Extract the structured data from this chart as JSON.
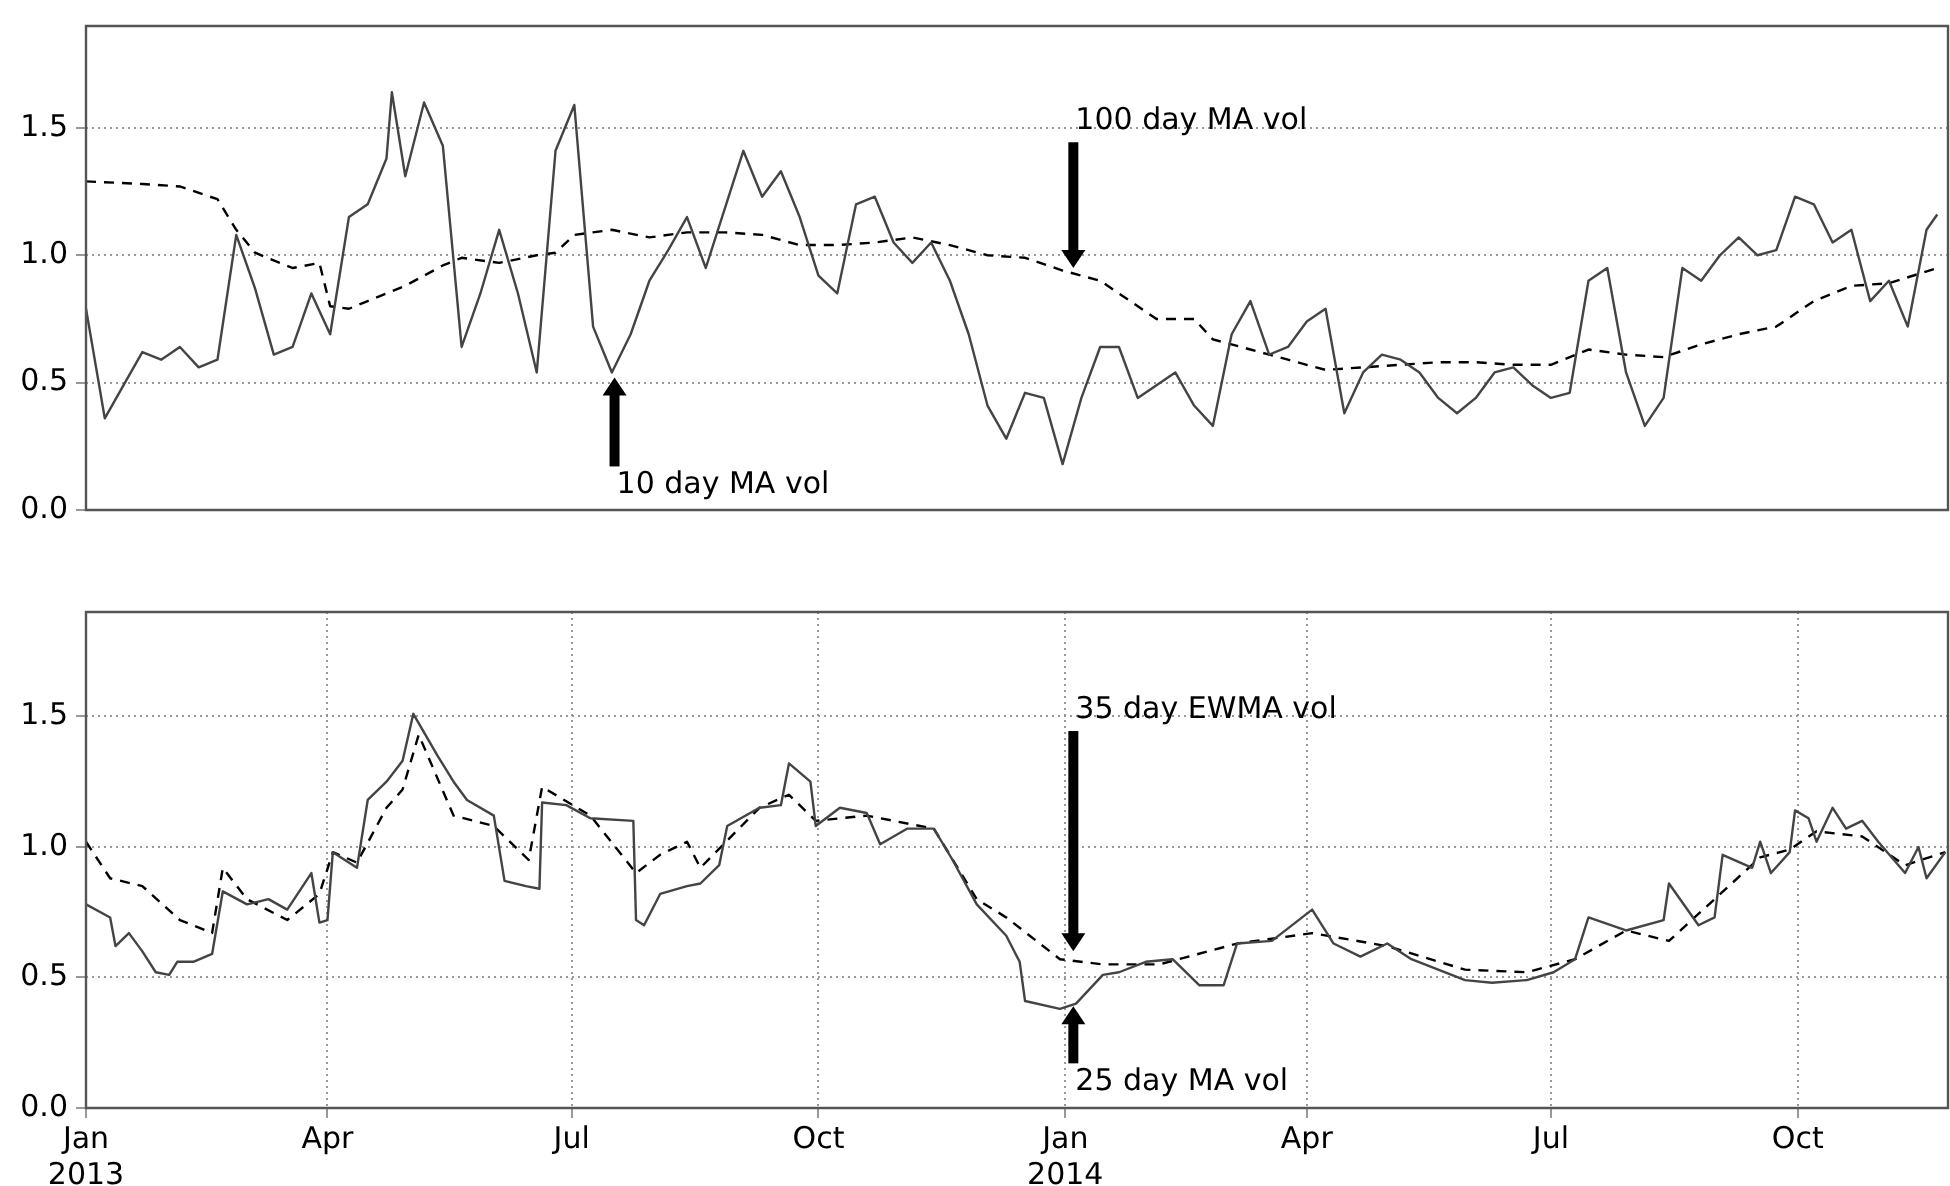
{
  "chart_data": [
    {
      "type": "line",
      "xlim": [
        "2013-01-01",
        "2014-11-26"
      ],
      "ylim": [
        0,
        1.9
      ],
      "yticks": [
        {
          "value": 0,
          "label": "0.0"
        },
        {
          "value": 0.5,
          "label": "0.5"
        },
        {
          "value": 1,
          "label": "1.0"
        },
        {
          "value": 1.5,
          "label": "1.5"
        }
      ],
      "grid": "y",
      "tick_labels": "y",
      "annotations": [
        {
          "text": "10 day MA vol",
          "x": "2013-07-17",
          "y": 0.52
        },
        {
          "text": "100 day MA vol",
          "x": "2014-01-04",
          "y": 0.95
        }
      ],
      "series": [
        {
          "color": "#444444",
          "line_style": "solid",
          "x": [
            "2013-01-01",
            "2013-01-08",
            "2013-01-15",
            "2013-01-22",
            "2013-01-29",
            "2013-02-05",
            "2013-02-12",
            "2013-02-19",
            "2013-02-26",
            "2013-03-05",
            "2013-03-12",
            "2013-03-19",
            "2013-03-26",
            "2013-04-02",
            "2013-04-09",
            "2013-04-16",
            "2013-04-23",
            "2013-04-25",
            "2013-04-30",
            "2013-05-07",
            "2013-05-14",
            "2013-05-21",
            "2013-05-28",
            "2013-06-04",
            "2013-06-11",
            "2013-06-18",
            "2013-06-25",
            "2013-07-02",
            "2013-07-09",
            "2013-07-16",
            "2013-07-23",
            "2013-07-30",
            "2013-08-06",
            "2013-08-13",
            "2013-08-20",
            "2013-08-27",
            "2013-09-03",
            "2013-09-10",
            "2013-09-17",
            "2013-09-24",
            "2013-10-01",
            "2013-10-08",
            "2013-10-15",
            "2013-10-22",
            "2013-10-29",
            "2013-11-05",
            "2013-11-12",
            "2013-11-19",
            "2013-11-26",
            "2013-12-03",
            "2013-12-10",
            "2013-12-17",
            "2013-12-24",
            "2013-12-31",
            "2014-01-07",
            "2014-01-14",
            "2014-01-21",
            "2014-01-28",
            "2014-02-04",
            "2014-02-11",
            "2014-02-18",
            "2014-02-25",
            "2014-03-04",
            "2014-03-11",
            "2014-03-18",
            "2014-03-25",
            "2014-04-01",
            "2014-04-08",
            "2014-04-15",
            "2014-04-22",
            "2014-04-29",
            "2014-05-06",
            "2014-05-13",
            "2014-05-20",
            "2014-05-27",
            "2014-06-03",
            "2014-06-10",
            "2014-06-17",
            "2014-06-24",
            "2014-07-01",
            "2014-07-08",
            "2014-07-15",
            "2014-07-22",
            "2014-07-29",
            "2014-08-05",
            "2014-08-12",
            "2014-08-19",
            "2014-08-26",
            "2014-09-02",
            "2014-09-09",
            "2014-09-16",
            "2014-09-23",
            "2014-09-30",
            "2014-10-07",
            "2014-10-14",
            "2014-10-21",
            "2014-10-28",
            "2014-11-04",
            "2014-11-11",
            "2014-11-18",
            "2014-11-22"
          ],
          "values": [
            0.79,
            0.36,
            0.49,
            0.62,
            0.59,
            0.64,
            0.56,
            0.59,
            1.08,
            0.87,
            0.61,
            0.64,
            0.85,
            0.69,
            1.15,
            1.2,
            1.38,
            1.64,
            1.31,
            1.6,
            1.43,
            0.64,
            0.85,
            1.1,
            0.85,
            0.54,
            1.41,
            1.59,
            0.72,
            0.54,
            0.69,
            0.9,
            1.02,
            1.15,
            0.95,
            1.18,
            1.41,
            1.23,
            1.33,
            1.15,
            0.92,
            0.85,
            1.2,
            1.23,
            1.05,
            0.97,
            1.05,
            0.9,
            0.69,
            0.41,
            0.28,
            0.46,
            0.44,
            0.18,
            0.44,
            0.64,
            0.64,
            0.44,
            0.49,
            0.54,
            0.41,
            0.33,
            0.69,
            0.82,
            0.61,
            0.64,
            0.74,
            0.79,
            0.38,
            0.54,
            0.61,
            0.59,
            0.54,
            0.44,
            0.38,
            0.44,
            0.54,
            0.56,
            0.49,
            0.44,
            0.46,
            0.9,
            0.95,
            0.54,
            0.33,
            0.44,
            0.95,
            0.9,
            1.0,
            1.07,
            1.0,
            1.02,
            1.23,
            1.2,
            1.05,
            1.1,
            0.82,
            0.9,
            0.72,
            1.1,
            1.16
          ]
        },
        {
          "color": "#000000",
          "line_style": "dashed",
          "x": [
            "2013-01-01",
            "2013-01-22",
            "2013-02-05",
            "2013-02-19",
            "2013-02-26",
            "2013-03-05",
            "2013-03-19",
            "2013-03-29",
            "2013-04-02",
            "2013-04-09",
            "2013-04-16",
            "2013-04-30",
            "2013-05-14",
            "2013-05-21",
            "2013-06-04",
            "2013-06-18",
            "2013-06-25",
            "2013-07-02",
            "2013-07-16",
            "2013-07-30",
            "2013-08-13",
            "2013-08-27",
            "2013-09-10",
            "2013-09-24",
            "2013-10-08",
            "2013-10-22",
            "2013-11-05",
            "2013-11-19",
            "2013-12-03",
            "2013-12-17",
            "2013-12-31",
            "2014-01-14",
            "2014-01-21",
            "2014-02-04",
            "2014-02-18",
            "2014-02-25",
            "2014-03-11",
            "2014-03-25",
            "2014-04-08",
            "2014-04-22",
            "2014-05-06",
            "2014-05-20",
            "2014-06-03",
            "2014-06-17",
            "2014-07-01",
            "2014-07-15",
            "2014-07-29",
            "2014-08-12",
            "2014-08-26",
            "2014-09-09",
            "2014-09-23",
            "2014-10-07",
            "2014-10-21",
            "2014-11-04",
            "2014-11-22"
          ],
          "values": [
            1.29,
            1.28,
            1.27,
            1.22,
            1.1,
            1.01,
            0.95,
            0.97,
            0.8,
            0.79,
            0.82,
            0.88,
            0.96,
            0.99,
            0.97,
            1.0,
            1.01,
            1.08,
            1.1,
            1.07,
            1.09,
            1.09,
            1.08,
            1.04,
            1.04,
            1.05,
            1.07,
            1.04,
            1.0,
            0.99,
            0.94,
            0.9,
            0.85,
            0.75,
            0.75,
            0.67,
            0.63,
            0.59,
            0.55,
            0.56,
            0.57,
            0.58,
            0.58,
            0.57,
            0.57,
            0.63,
            0.61,
            0.6,
            0.65,
            0.69,
            0.72,
            0.82,
            0.88,
            0.89,
            0.95
          ]
        }
      ]
    },
    {
      "type": "line",
      "xlim": [
        "2013-01-01",
        "2014-11-26"
      ],
      "ylim": [
        0,
        1.9
      ],
      "yticks": [
        {
          "value": 0,
          "label": "0.0"
        },
        {
          "value": 0.5,
          "label": "0.5"
        },
        {
          "value": 1,
          "label": "1.0"
        },
        {
          "value": 1.5,
          "label": "1.5"
        }
      ],
      "xticks": [
        {
          "value": "2013-01-01",
          "label": "Jan\n2013"
        },
        {
          "value": "2013-04-01",
          "label": "Apr"
        },
        {
          "value": "2013-07-01",
          "label": "Jul"
        },
        {
          "value": "2013-10-01",
          "label": "Oct"
        },
        {
          "value": "2014-01-01",
          "label": "Jan\n2014"
        },
        {
          "value": "2014-04-01",
          "label": "Apr"
        },
        {
          "value": "2014-07-01",
          "label": "Jul"
        },
        {
          "value": "2014-10-01",
          "label": "Oct"
        }
      ],
      "grid": true,
      "annotations": [
        {
          "text": "35 day EWMA vol",
          "x": "2014-01-04",
          "y": 0.6
        },
        {
          "text": "25 day MA vol",
          "x": "2014-01-04",
          "y": 0.39
        }
      ],
      "series": [
        {
          "color": "#444444",
          "line_style": "solid",
          "x": [
            "2013-01-01",
            "2013-01-10",
            "2013-01-12",
            "2013-01-17",
            "2013-01-22",
            "2013-01-27",
            "2013-02-01",
            "2013-02-04",
            "2013-02-10",
            "2013-02-17",
            "2013-02-21",
            "2013-03-02",
            "2013-03-10",
            "2013-03-17",
            "2013-03-26",
            "2013-03-29",
            "2013-04-01",
            "2013-04-03",
            "2013-04-12",
            "2013-04-16",
            "2013-04-23",
            "2013-04-29",
            "2013-05-03",
            "2013-05-12",
            "2013-05-18",
            "2013-05-23",
            "2013-06-02",
            "2013-06-06",
            "2013-06-14",
            "2013-06-19",
            "2013-06-20",
            "2013-06-29",
            "2013-07-08",
            "2013-07-24",
            "2013-07-25",
            "2013-07-28",
            "2013-08-03",
            "2013-08-13",
            "2013-08-18",
            "2013-08-25",
            "2013-08-28",
            "2013-09-09",
            "2013-09-17",
            "2013-09-20",
            "2013-09-28",
            "2013-09-30",
            "2013-10-09",
            "2013-10-19",
            "2013-10-24",
            "2013-11-03",
            "2013-11-13",
            "2013-11-20",
            "2013-11-29",
            "2013-12-10",
            "2013-12-15",
            "2013-12-17",
            "2013-12-30",
            "2014-01-05",
            "2014-01-15",
            "2014-01-21",
            "2014-01-31",
            "2014-02-10",
            "2014-02-20",
            "2014-03-01",
            "2014-03-06",
            "2014-03-19",
            "2014-04-03",
            "2014-04-11",
            "2014-04-21",
            "2014-05-01",
            "2014-05-10",
            "2014-05-30",
            "2014-06-09",
            "2014-06-22",
            "2014-07-02",
            "2014-07-10",
            "2014-07-15",
            "2014-07-29",
            "2014-08-12",
            "2014-08-14",
            "2014-08-25",
            "2014-08-31",
            "2014-09-03",
            "2014-09-14",
            "2014-09-17",
            "2014-09-21",
            "2014-09-28",
            "2014-09-30",
            "2014-10-05",
            "2014-10-08",
            "2014-10-14",
            "2014-10-19",
            "2014-10-25",
            "2014-10-31",
            "2014-11-10",
            "2014-11-15",
            "2014-11-18",
            "2014-11-25"
          ],
          "values": [
            0.78,
            0.73,
            0.62,
            0.67,
            0.6,
            0.52,
            0.51,
            0.56,
            0.56,
            0.59,
            0.83,
            0.78,
            0.8,
            0.76,
            0.9,
            0.71,
            0.72,
            0.98,
            0.92,
            1.18,
            1.25,
            1.33,
            1.51,
            1.35,
            1.25,
            1.18,
            1.12,
            0.87,
            0.85,
            0.84,
            1.17,
            1.16,
            1.11,
            1.1,
            0.72,
            0.7,
            0.82,
            0.85,
            0.86,
            0.93,
            1.08,
            1.15,
            1.16,
            1.32,
            1.25,
            1.08,
            1.15,
            1.13,
            1.01,
            1.07,
            1.07,
            0.95,
            0.78,
            0.66,
            0.56,
            0.41,
            0.38,
            0.4,
            0.51,
            0.52,
            0.56,
            0.57,
            0.47,
            0.47,
            0.63,
            0.64,
            0.76,
            0.63,
            0.58,
            0.63,
            0.57,
            0.49,
            0.48,
            0.49,
            0.52,
            0.57,
            0.73,
            0.68,
            0.72,
            0.86,
            0.7,
            0.73,
            0.97,
            0.92,
            1.02,
            0.9,
            0.98,
            1.14,
            1.11,
            1.02,
            1.15,
            1.07,
            1.1,
            1.02,
            0.9,
            1.0,
            0.88,
            0.98
          ]
        },
        {
          "color": "#000000",
          "line_style": "dashed",
          "x": [
            "2013-01-01",
            "2013-01-10",
            "2013-01-22",
            "2013-02-05",
            "2013-02-17",
            "2013-02-21",
            "2013-03-02",
            "2013-03-17",
            "2013-03-29",
            "2013-04-03",
            "2013-04-12",
            "2013-04-23",
            "2013-04-29",
            "2013-05-05",
            "2013-05-18",
            "2013-06-02",
            "2013-06-15",
            "2013-06-20",
            "2013-07-08",
            "2013-07-25",
            "2013-08-03",
            "2013-08-13",
            "2013-08-18",
            "2013-09-09",
            "2013-09-20",
            "2013-09-30",
            "2013-10-19",
            "2013-11-13",
            "2013-11-29",
            "2013-12-10",
            "2013-12-30",
            "2014-01-15",
            "2014-02-05",
            "2014-03-06",
            "2014-04-03",
            "2014-05-01",
            "2014-05-30",
            "2014-06-22",
            "2014-07-10",
            "2014-07-29",
            "2014-08-14",
            "2014-08-31",
            "2014-09-17",
            "2014-09-28",
            "2014-10-08",
            "2014-10-25",
            "2014-11-10",
            "2014-11-25"
          ],
          "values": [
            1.02,
            0.88,
            0.85,
            0.72,
            0.67,
            0.92,
            0.8,
            0.72,
            0.82,
            0.98,
            0.94,
            1.15,
            1.22,
            1.43,
            1.12,
            1.08,
            0.95,
            1.23,
            1.12,
            0.9,
            0.97,
            1.02,
            0.92,
            1.15,
            1.2,
            1.1,
            1.12,
            1.07,
            0.8,
            0.73,
            0.57,
            0.55,
            0.55,
            0.63,
            0.67,
            0.62,
            0.53,
            0.52,
            0.57,
            0.68,
            0.64,
            0.8,
            0.96,
            0.99,
            1.06,
            1.04,
            0.93,
            0.98
          ]
        }
      ]
    }
  ]
}
